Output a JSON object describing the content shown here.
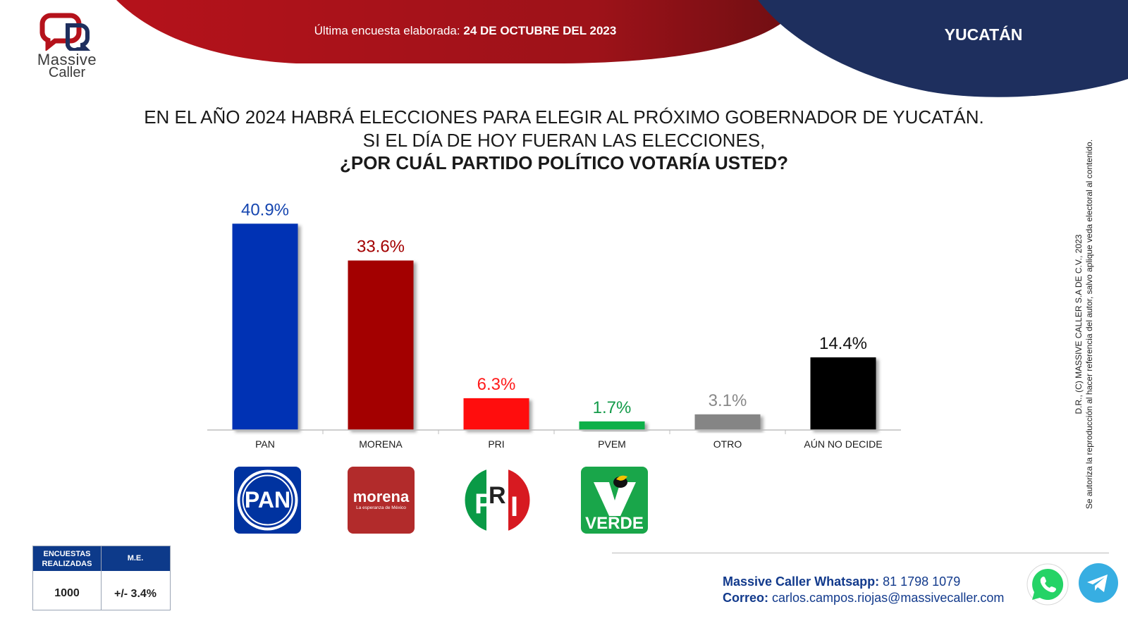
{
  "header": {
    "survey_prefix": "Última encuesta elaborada:",
    "survey_date": "24 DE OCTUBRE DEL 2023",
    "region": "YUCATÁN",
    "colors": {
      "red": "#b5121b",
      "navy": "#1e2f5e"
    }
  },
  "logo": {
    "name_line1": "Massive",
    "name_line2": "Caller",
    "icon": "chat-bubbles-logo-icon"
  },
  "question": {
    "line1": "EN EL AÑO 2024 HABRÁ ELECCIONES PARA ELEGIR AL PRÓXIMO GOBERNADOR DE YUCATÁN.",
    "line2": "SI EL DÍA DE HOY FUERAN LAS ELECCIONES,",
    "line3": "¿POR CUÁL PARTIDO POLÍTICO VOTARÍA USTED?"
  },
  "chart_data": {
    "type": "bar",
    "categories": [
      "PAN",
      "MORENA",
      "PRI",
      "PVEM",
      "OTRO",
      "AÚN NO DECIDE"
    ],
    "values": [
      40.9,
      33.6,
      6.3,
      1.7,
      3.1,
      14.4
    ],
    "value_labels": [
      "40.9%",
      "33.6%",
      "6.3%",
      "1.7%",
      "3.1%",
      "14.4%"
    ],
    "colors": [
      "#0033b4",
      "#a30000",
      "#ff0d0d",
      "#0fb04a",
      "#858585",
      "#000000"
    ],
    "label_colors": [
      "#1646b0",
      "#a30000",
      "#ff1a1a",
      "#129a48",
      "#888888",
      "#111111"
    ],
    "ylim": [
      0,
      45
    ],
    "grid": false,
    "legend": "none"
  },
  "party_logos": {
    "pan": {
      "text": "PAN",
      "icon": "pan-logo-icon",
      "color": "#0033a0"
    },
    "morena": {
      "text": "morena",
      "subtext": "La esperanza de México",
      "icon": "morena-logo-icon",
      "color": "#b22b2b"
    },
    "pri": {
      "text_p": "P",
      "text_r": "R",
      "text_i": "I",
      "icon": "pri-logo-icon"
    },
    "pvem": {
      "text": "VERDE",
      "icon": "pvem-logo-icon",
      "color": "#19a64a"
    }
  },
  "copyright": {
    "line1": "D.R., (C) MASSIVE CALLER S.A DE C.V., 2023",
    "line2": "Se autoriza la reproducción al hacer referencia del autor, salvo aplique veda electoral al contenido."
  },
  "sample_table": {
    "col1_header_line1": "ENCUESTAS",
    "col1_header_line2": "REALIZADAS",
    "col2_header": "M.E.",
    "col1_value": "1000",
    "col2_value": "+/- 3.4%"
  },
  "contact": {
    "whatsapp_label": "Massive Caller Whatsapp:",
    "whatsapp_number": "81 1798 1079",
    "email_label": "Correo:",
    "email": "carlos.campos.riojas@massivecaller.com",
    "icons": [
      "whatsapp-icon",
      "telegram-icon"
    ]
  }
}
